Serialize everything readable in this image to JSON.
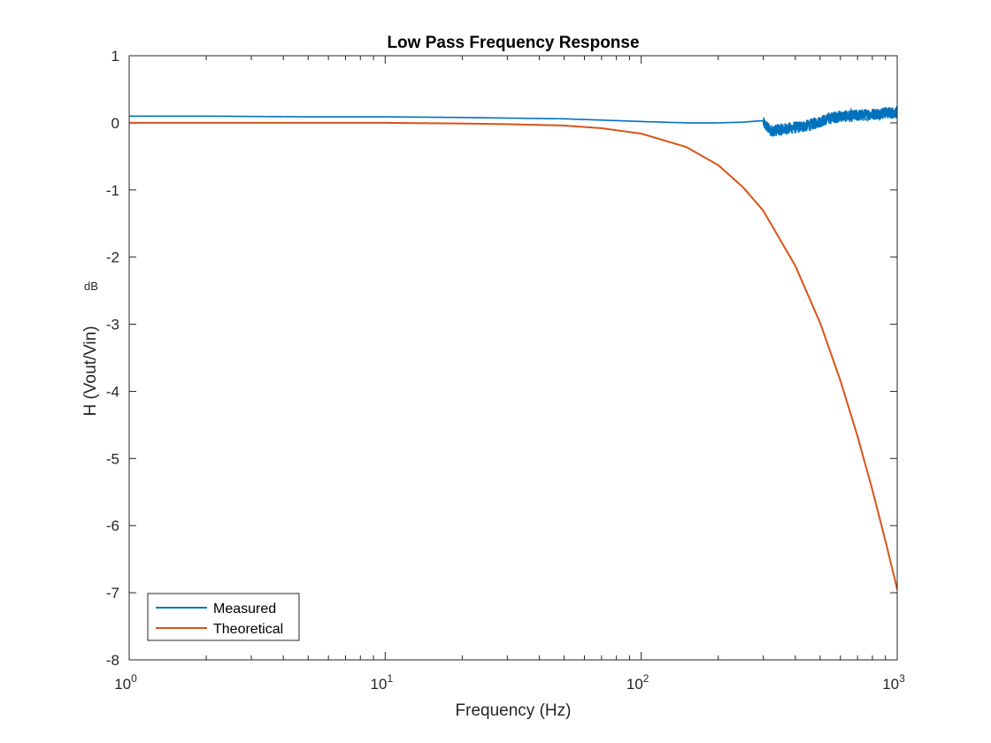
{
  "chart_data": {
    "type": "line",
    "title": "Low Pass Frequency Response",
    "xlabel": "Frequency (Hz)",
    "ylabel": "H (Vout/Vin)",
    "ylabel_unit": "dB",
    "xscale": "log",
    "xlim": [
      1,
      1000
    ],
    "ylim": [
      -8,
      1
    ],
    "grid": false,
    "legend_location": "bottom-left",
    "x_ticks": [
      {
        "base": "10",
        "exp": "0",
        "value": 1
      },
      {
        "base": "10",
        "exp": "1",
        "value": 10
      },
      {
        "base": "10",
        "exp": "2",
        "value": 100
      },
      {
        "base": "10",
        "exp": "3",
        "value": 1000
      }
    ],
    "y_ticks": [
      {
        "label": "1",
        "value": 1
      },
      {
        "label": "0",
        "value": 0
      },
      {
        "label": "-1",
        "value": -1
      },
      {
        "label": "-2",
        "value": -2
      },
      {
        "label": "-3",
        "value": -3
      },
      {
        "label": "-4",
        "value": -4
      },
      {
        "label": "-5",
        "value": -5
      },
      {
        "label": "-6",
        "value": -6
      },
      {
        "label": "-7",
        "value": -7
      },
      {
        "label": "-8",
        "value": -8
      }
    ],
    "series": [
      {
        "name": "Measured",
        "color": "#0072BD",
        "x": [
          1,
          2,
          5,
          10,
          20,
          50,
          100,
          150,
          200,
          250,
          290
        ],
        "y": [
          0.1,
          0.1,
          0.09,
          0.09,
          0.08,
          0.06,
          0.02,
          0.0,
          0.0,
          0.01,
          0.03
        ],
        "noisy_segment": {
          "x": [
            300,
            320,
            350,
            400,
            450,
            500,
            550,
            600,
            650,
            700,
            750,
            800,
            850,
            900,
            950,
            1000
          ],
          "y": [
            0.0,
            -0.12,
            -0.1,
            -0.07,
            -0.04,
            0.02,
            0.07,
            0.1,
            0.1,
            0.11,
            0.12,
            0.13,
            0.14,
            0.15,
            0.15,
            0.16
          ],
          "amplitude": 0.09
        }
      },
      {
        "name": "Theoretical",
        "color": "#D95319",
        "x": [
          1,
          5,
          10,
          20,
          30,
          50,
          70,
          100,
          150,
          200,
          250,
          300,
          400,
          500,
          600,
          700,
          800,
          900,
          1000
        ],
        "y": [
          0.0,
          0.0,
          0.0,
          -0.01,
          -0.02,
          -0.04,
          -0.08,
          -0.16,
          -0.36,
          -0.63,
          -0.96,
          -1.31,
          -2.13,
          -2.98,
          -3.84,
          -4.67,
          -5.47,
          -6.23,
          -6.95
        ]
      }
    ]
  }
}
